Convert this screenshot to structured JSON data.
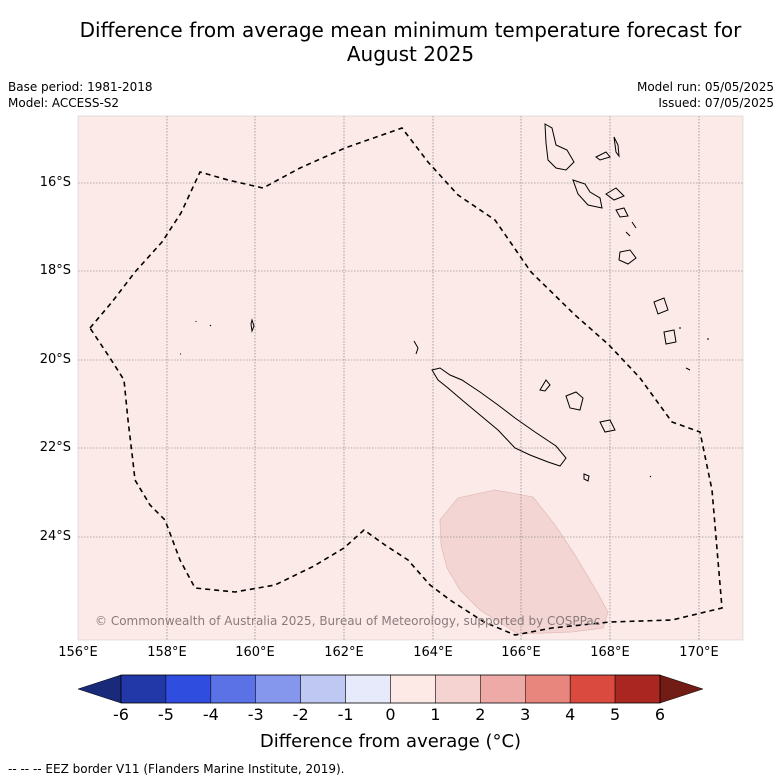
{
  "title_line1": "Difference from average mean minimum temperature forecast for",
  "title_line2": "August 2025",
  "meta": {
    "base_period": "Base period: 1981-2018",
    "model": "Model: ACCESS-S2",
    "model_run": "Model run: 05/05/2025",
    "issued": "Issued: 07/05/2025"
  },
  "map": {
    "lat_labels": [
      "16°S",
      "18°S",
      "20°S",
      "22°S",
      "24°S"
    ],
    "lon_labels": [
      "156°E",
      "158°E",
      "160°E",
      "162°E",
      "164°E",
      "166°E",
      "168°E",
      "170°E"
    ],
    "copyright": "© Commonwealth of Australia 2025, Bureau of Meteorology, supported by COSPPac",
    "background_anomaly_color": "#fbeae8",
    "warm_patch_color": "#f3d6d4",
    "grid": true
  },
  "colorbar": {
    "ticks": [
      "-6",
      "-5",
      "-4",
      "-3",
      "-2",
      "-1",
      "0",
      "1",
      "2",
      "3",
      "4",
      "5",
      "6"
    ],
    "colors": [
      "#2238a8",
      "#2f4ee0",
      "#5a72e6",
      "#8597ec",
      "#bfc7f3",
      "#e6eafb",
      "#fdeae6",
      "#f4d3d0",
      "#eeaaa6",
      "#e8857d",
      "#db4a3e",
      "#aa2620"
    ],
    "under_color": "#1a2a7a",
    "over_color": "#721c16",
    "label": "Difference from average ($^\\circ$C)",
    "label_display": "Difference from average (°C)"
  },
  "footnote": "-- -- -- EEZ border V11 (Flanders Marine Institute, 2019)."
}
